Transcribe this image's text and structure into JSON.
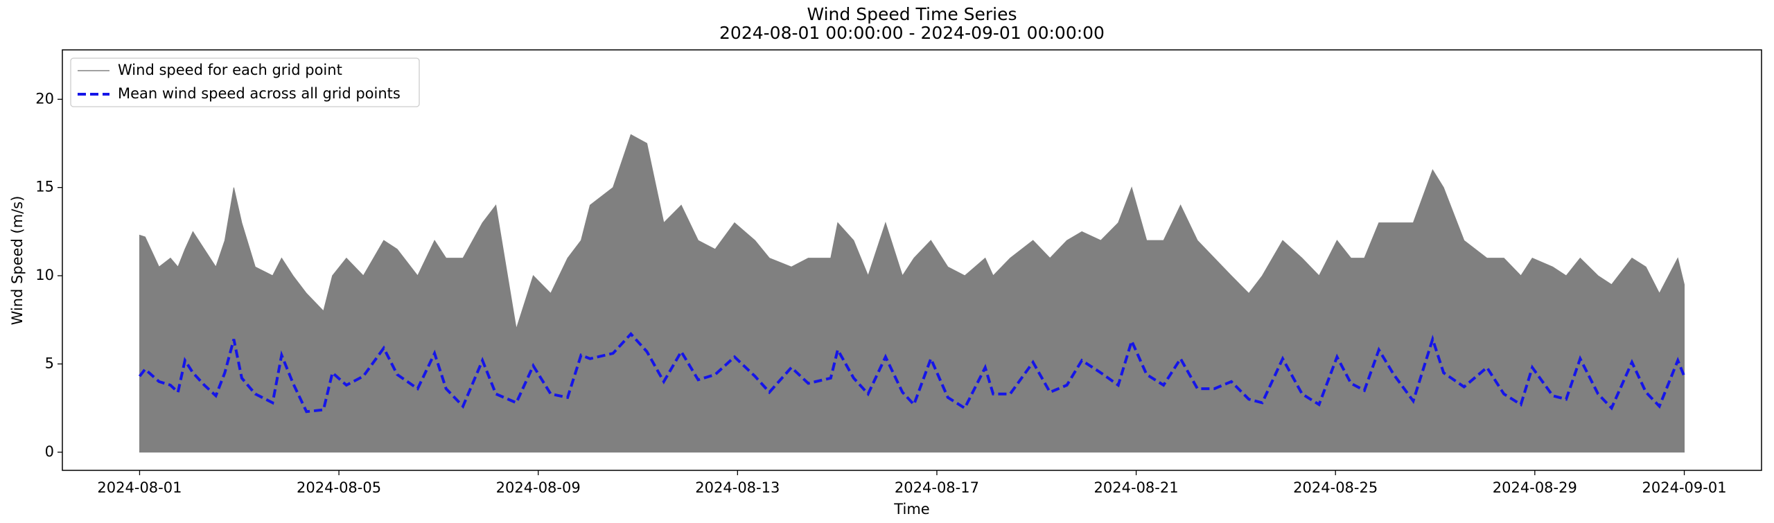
{
  "chart_data": {
    "type": "line",
    "title": "Wind Speed Time Series",
    "subtitle": "2024-08-01 00:00:00 - 2024-09-01 00:00:00",
    "x_label": "Time",
    "y_label": "Wind Speed (m/s)",
    "x": [
      0,
      0.11,
      0.39,
      0.62,
      0.77,
      0.91,
      1.07,
      1.3,
      1.53,
      1.71,
      1.89,
      2.05,
      2.32,
      2.67,
      2.85,
      3.08,
      3.35,
      3.69,
      3.87,
      4.15,
      4.49,
      4.9,
      5.17,
      5.58,
      5.92,
      6.15,
      6.49,
      6.88,
      7.15,
      7.56,
      7.9,
      8.25,
      8.59,
      8.86,
      9.04,
      9.5,
      9.86,
      10.18,
      10.52,
      10.87,
      11.21,
      11.55,
      11.94,
      12.35,
      12.64,
      13.08,
      13.42,
      13.87,
      14.01,
      14.33,
      14.62,
      14.97,
      15.31,
      15.54,
      15.88,
      16.22,
      16.56,
      16.97,
      17.13,
      17.47,
      17.93,
      18.27,
      18.61,
      18.91,
      19.29,
      19.64,
      19.91,
      20.21,
      20.55,
      20.89,
      21.23,
      21.57,
      21.91,
      22.26,
      22.53,
      22.94,
      23.33,
      23.67,
      24.03,
      24.31,
      24.58,
      24.87,
      25.17,
      25.56,
      25.95,
      26.17,
      26.58,
      27.04,
      27.38,
      27.72,
      27.95,
      28.36,
      28.63,
      28.91,
      29.27,
      29.54,
      29.95,
      30.23,
      30.5,
      30.87,
      31
    ],
    "series": [
      {
        "name": "Wind speed for each grid point",
        "color": "#808080",
        "style": "area",
        "values": [
          12.3,
          12.2,
          10.5,
          11,
          10.5,
          11.5,
          12.5,
          11.5,
          10.5,
          12,
          15,
          13,
          10.5,
          10,
          11,
          10,
          9,
          8,
          10,
          11,
          10,
          12,
          11.5,
          10,
          12,
          11,
          11,
          13,
          14,
          7,
          10,
          9,
          11,
          12,
          14,
          15,
          18,
          17.5,
          13,
          14,
          12,
          11.5,
          13,
          12,
          11,
          10.5,
          11,
          11,
          13,
          12,
          10,
          13,
          10,
          11,
          12,
          10.5,
          10,
          11,
          10,
          11,
          12,
          11,
          12,
          12.5,
          12,
          13,
          15,
          12,
          12,
          14,
          12,
          11,
          10,
          9,
          10,
          12,
          11,
          10,
          12,
          11,
          11,
          13,
          13,
          13,
          16,
          15,
          12,
          11,
          11,
          10,
          11,
          10.5,
          10,
          11,
          10,
          9.5,
          11,
          10.5,
          9,
          11,
          9.5
        ]
      },
      {
        "name": "Mean wind speed across all grid points",
        "color": "#1515e8",
        "style": "dashed",
        "values": [
          4.3,
          4.7,
          4.0,
          3.8,
          3.4,
          5.2,
          4.5,
          3.8,
          3.2,
          4.5,
          6.4,
          4.2,
          3.3,
          2.8,
          5.5,
          3.9,
          2.3,
          2.4,
          4.5,
          3.8,
          4.3,
          5.9,
          4.4,
          3.6,
          5.6,
          3.6,
          2.6,
          5.2,
          3.3,
          2.8,
          4.9,
          3.3,
          3.1,
          5.5,
          5.3,
          5.6,
          6.7,
          5.7,
          4.0,
          5.7,
          4.1,
          4.4,
          5.4,
          4.3,
          3.4,
          4.8,
          3.9,
          4.2,
          5.8,
          4.2,
          3.3,
          5.4,
          3.4,
          2.7,
          5.3,
          3.1,
          2.5,
          4.8,
          3.3,
          3.3,
          5.1,
          3.4,
          3.8,
          5.2,
          4.5,
          3.8,
          6.3,
          4.4,
          3.8,
          5.3,
          3.6,
          3.6,
          4.0,
          3.0,
          2.8,
          5.3,
          3.3,
          2.7,
          5.4,
          3.9,
          3.5,
          5.8,
          4.4,
          2.9,
          6.4,
          4.5,
          3.7,
          4.8,
          3.3,
          2.7,
          4.8,
          3.2,
          3.0,
          5.3,
          3.3,
          2.5,
          5.1,
          3.4,
          2.6,
          5.2,
          4.3
        ]
      }
    ],
    "xlim": [
      -1.55,
      32.55
    ],
    "xticks": [
      {
        "value": 0,
        "label": "2024-08-01"
      },
      {
        "value": 4,
        "label": "2024-08-05"
      },
      {
        "value": 8,
        "label": "2024-08-09"
      },
      {
        "value": 12,
        "label": "2024-08-13"
      },
      {
        "value": 16,
        "label": "2024-08-17"
      },
      {
        "value": 20,
        "label": "2024-08-21"
      },
      {
        "value": 24,
        "label": "2024-08-25"
      },
      {
        "value": 28,
        "label": "2024-08-29"
      },
      {
        "value": 31,
        "label": "2024-09-01"
      }
    ],
    "ylim": [
      -1.03,
      22.8
    ],
    "yticks": [
      0,
      5,
      10,
      15,
      20
    ],
    "grid": false,
    "legend": "upper left"
  }
}
